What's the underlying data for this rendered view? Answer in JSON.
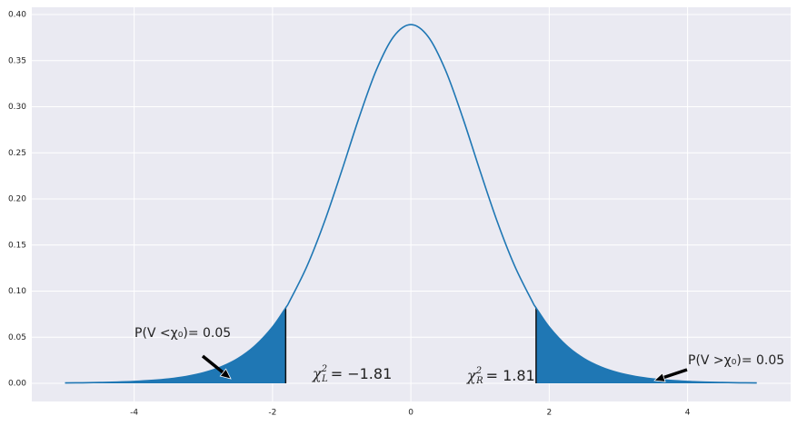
{
  "chart_data": {
    "type": "line",
    "x": [
      -5,
      -4.75,
      -4.5,
      -4.25,
      -4,
      -3.75,
      -3.5,
      -3.25,
      -3,
      -2.75,
      -2.5,
      -2.25,
      -2,
      -1.81,
      -1.75,
      -1.5,
      -1.25,
      -1,
      -0.75,
      -0.5,
      -0.25,
      0,
      0.25,
      0.5,
      0.75,
      1,
      1.25,
      1.5,
      1.75,
      1.81,
      2,
      2.25,
      2.5,
      2.75,
      3,
      3.25,
      3.5,
      3.75,
      4,
      4.25,
      4.5,
      4.75,
      5
    ],
    "values": [
      0.0004,
      0.0006,
      0.0009,
      0.0013,
      0.002,
      0.0031,
      0.0048,
      0.0074,
      0.0114,
      0.0176,
      0.0269,
      0.0409,
      0.0611,
      0.0819,
      0.0895,
      0.1274,
      0.1751,
      0.2304,
      0.288,
      0.3397,
      0.376,
      0.3891,
      0.376,
      0.3397,
      0.288,
      0.2304,
      0.1751,
      0.1274,
      0.0895,
      0.0819,
      0.0611,
      0.0409,
      0.0269,
      0.0176,
      0.0114,
      0.0074,
      0.0048,
      0.0031,
      0.002,
      0.0013,
      0.0009,
      0.0006,
      0.0004
    ],
    "color": "#1f77b4",
    "thresholds": [
      -1.81,
      1.81
    ],
    "xlim": [
      -5.48,
      5.49
    ],
    "ylim": [
      -0.0197,
      0.4079
    ],
    "xticks": [
      -4,
      -2,
      0,
      2,
      4
    ],
    "yticks": [
      {
        "value": 0,
        "label": "0.00"
      },
      {
        "value": 0.05,
        "label": "0.05"
      },
      {
        "value": 0.1,
        "label": "0.10"
      },
      {
        "value": 0.15,
        "label": "0.15"
      },
      {
        "value": 0.2,
        "label": "0.20"
      },
      {
        "value": 0.25,
        "label": "0.25"
      },
      {
        "value": 0.3,
        "label": "0.30"
      },
      {
        "value": 0.35,
        "label": "0.35"
      },
      {
        "value": 0.4,
        "label": "0.40"
      }
    ],
    "grid": true,
    "annotations": [
      {
        "text": "P(V <χ₀)= 0.05"
      },
      {
        "text": "P(V >χ₀)= 0.05"
      }
    ],
    "critical_labels": [
      {
        "symbol": "χ",
        "sup": "2",
        "sub": "L",
        "text": "= −1.81"
      },
      {
        "symbol": "χ",
        "sup": "2",
        "sub": "R",
        "text": "= 1.81"
      }
    ]
  }
}
